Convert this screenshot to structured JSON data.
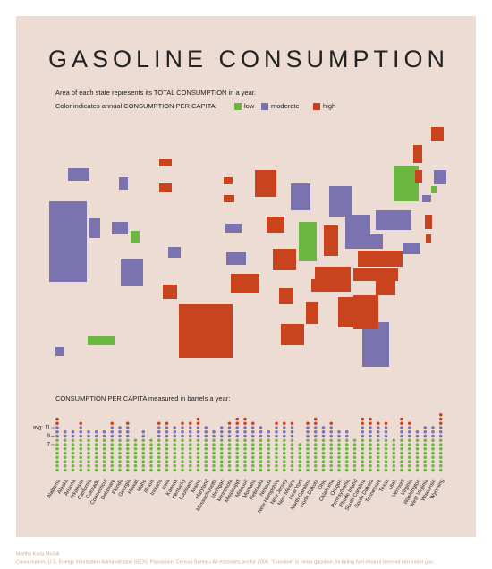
{
  "chart_data": {
    "type": "dot-column",
    "title": "GASOLINE CONSUMPTION",
    "subtitle": "Area of each state represents its TOTAL CONSUMPTION in a year.",
    "legend_title": "Color indicates annual CONSUMPTION PER CAPITA:",
    "legend": [
      {
        "name": "low",
        "color": "#6ab83f"
      },
      {
        "name": "moderate",
        "color": "#7b72b0"
      },
      {
        "name": "high",
        "color": "#c9431f"
      }
    ],
    "chart_title": "CONSUMPTION PER CAPITA measured in barrels a year:",
    "categories": [
      "Alabama",
      "Alaska",
      "Arizona",
      "Arkansas",
      "California",
      "Colorado",
      "Connecticut",
      "Delaware",
      "Florida",
      "Georgia",
      "Hawaii",
      "Idaho",
      "Illinois",
      "Indiana",
      "Iowa",
      "Kansas",
      "Kentucky",
      "Louisiana",
      "Maine",
      "Maryland",
      "Massachusetts",
      "Michigan",
      "Minnesota",
      "Mississippi",
      "Missouri",
      "Montana",
      "Nebraska",
      "Nevada",
      "New Hampshire",
      "New Jersey",
      "New Mexico",
      "New York",
      "North Carolina",
      "North Dakota",
      "Ohio",
      "Oklahoma",
      "Oregon",
      "Pennsylvania",
      "Rhode Island",
      "South Carolina",
      "South Dakota",
      "Tennessee",
      "Texas",
      "Utah",
      "Vermont",
      "Virginia",
      "Washington",
      "West Virginia",
      "Wisconsin",
      "Wyoming"
    ],
    "values": [
      13,
      10,
      10,
      12,
      10,
      10,
      10,
      12,
      11,
      12,
      8,
      10,
      8,
      12,
      12,
      11,
      12,
      12,
      13,
      11,
      10,
      11,
      12,
      13,
      13,
      12,
      11,
      10,
      12,
      12,
      12,
      7,
      12,
      13,
      11,
      12,
      10,
      10,
      8,
      13,
      13,
      12,
      12,
      8,
      13,
      12,
      10,
      11,
      11,
      14
    ],
    "ylim": [
      0,
      14
    ],
    "yticks": [
      7,
      9,
      {
        "value": 11,
        "label": "avg: 11"
      }
    ],
    "credits": [
      "Martha Kang McGill",
      "Consumption: U.S. Energy Information Administration SEDS.  Population: Census Bureau.  All estimates are for 2008.  \"Gasoline\" is motor gasoline, including fuel ethanol blended into motor gas."
    ]
  }
}
